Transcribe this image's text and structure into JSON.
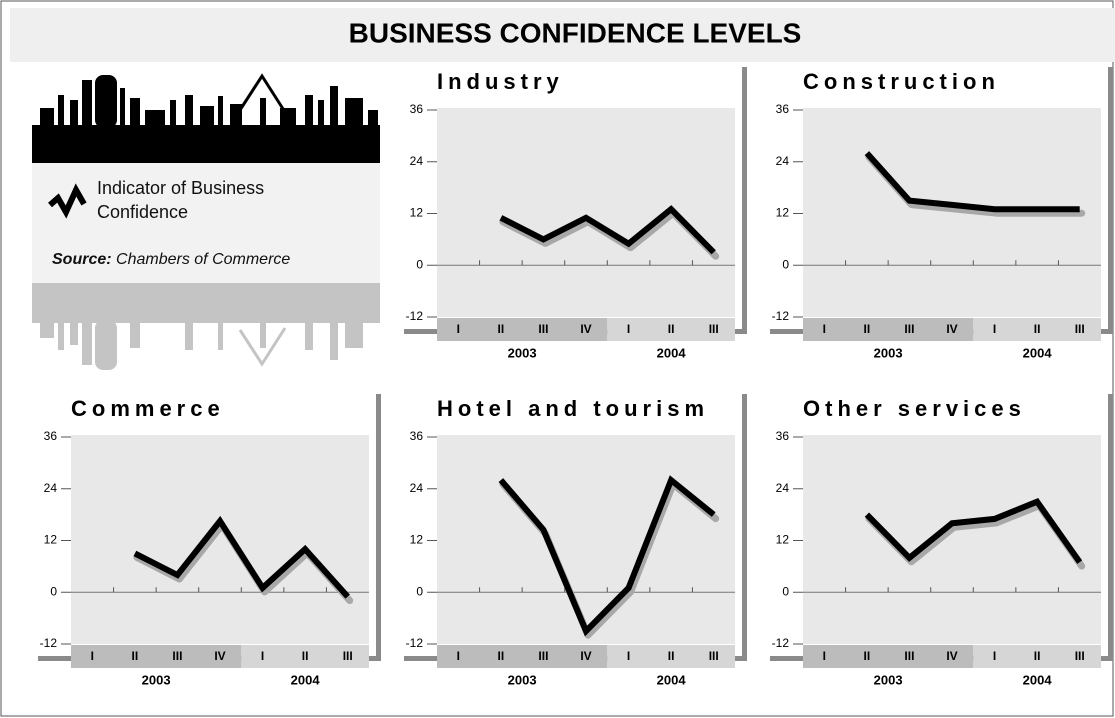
{
  "title": "BUSINESS CONFIDENCE LEVELS",
  "legend": {
    "label": "Indicator of Business Confidence",
    "source_label": "Source:",
    "source": "Chambers of Commerce"
  },
  "chart_data": [
    {
      "type": "line",
      "title": "Industry",
      "groups": [
        {
          "label": "2003",
          "categories": [
            "I",
            "II",
            "III",
            "IV"
          ]
        },
        {
          "label": "2004",
          "categories": [
            "I",
            "II",
            "III"
          ]
        }
      ],
      "values": [
        null,
        11,
        6,
        11,
        5,
        13,
        3
      ],
      "color": "#000000",
      "ylim": [
        -12,
        36
      ],
      "yticks": [
        -12,
        0,
        12,
        24,
        36
      ]
    },
    {
      "type": "line",
      "title": "Construction",
      "groups": [
        {
          "label": "2003",
          "categories": [
            "I",
            "II",
            "III",
            "IV"
          ]
        },
        {
          "label": "2004",
          "categories": [
            "I",
            "II",
            "III"
          ]
        }
      ],
      "values": [
        null,
        26,
        15,
        14,
        13,
        13,
        13
      ],
      "color": "#000000",
      "ylim": [
        -12,
        36
      ],
      "yticks": [
        -12,
        0,
        12,
        24,
        36
      ]
    },
    {
      "type": "line",
      "title": "Commerce",
      "groups": [
        {
          "label": "2003",
          "categories": [
            "I",
            "II",
            "III",
            "IV"
          ]
        },
        {
          "label": "2004",
          "categories": [
            "I",
            "II",
            "III"
          ]
        }
      ],
      "values": [
        null,
        9,
        4,
        16.5,
        1,
        10,
        -1
      ],
      "color": "#000000",
      "ylim": [
        -12,
        36
      ],
      "yticks": [
        -12,
        0,
        12,
        24,
        36
      ]
    },
    {
      "type": "line",
      "title": "Hotel and tourism",
      "groups": [
        {
          "label": "2003",
          "categories": [
            "I",
            "II",
            "III",
            "IV"
          ]
        },
        {
          "label": "2004",
          "categories": [
            "I",
            "II",
            "III"
          ]
        }
      ],
      "values": [
        null,
        26,
        14.5,
        -9,
        1,
        26,
        18
      ],
      "color": "#000000",
      "ylim": [
        -12,
        36
      ],
      "yticks": [
        -12,
        0,
        12,
        24,
        36
      ]
    },
    {
      "type": "line",
      "title": "Other services",
      "groups": [
        {
          "label": "2003",
          "categories": [
            "I",
            "II",
            "III",
            "IV"
          ]
        },
        {
          "label": "2004",
          "categories": [
            "I",
            "II",
            "III"
          ]
        }
      ],
      "values": [
        null,
        18,
        8,
        16,
        17,
        21,
        7
      ],
      "color": "#000000",
      "ylim": [
        -12,
        36
      ],
      "yticks": [
        -12,
        0,
        12,
        24,
        36
      ]
    }
  ]
}
